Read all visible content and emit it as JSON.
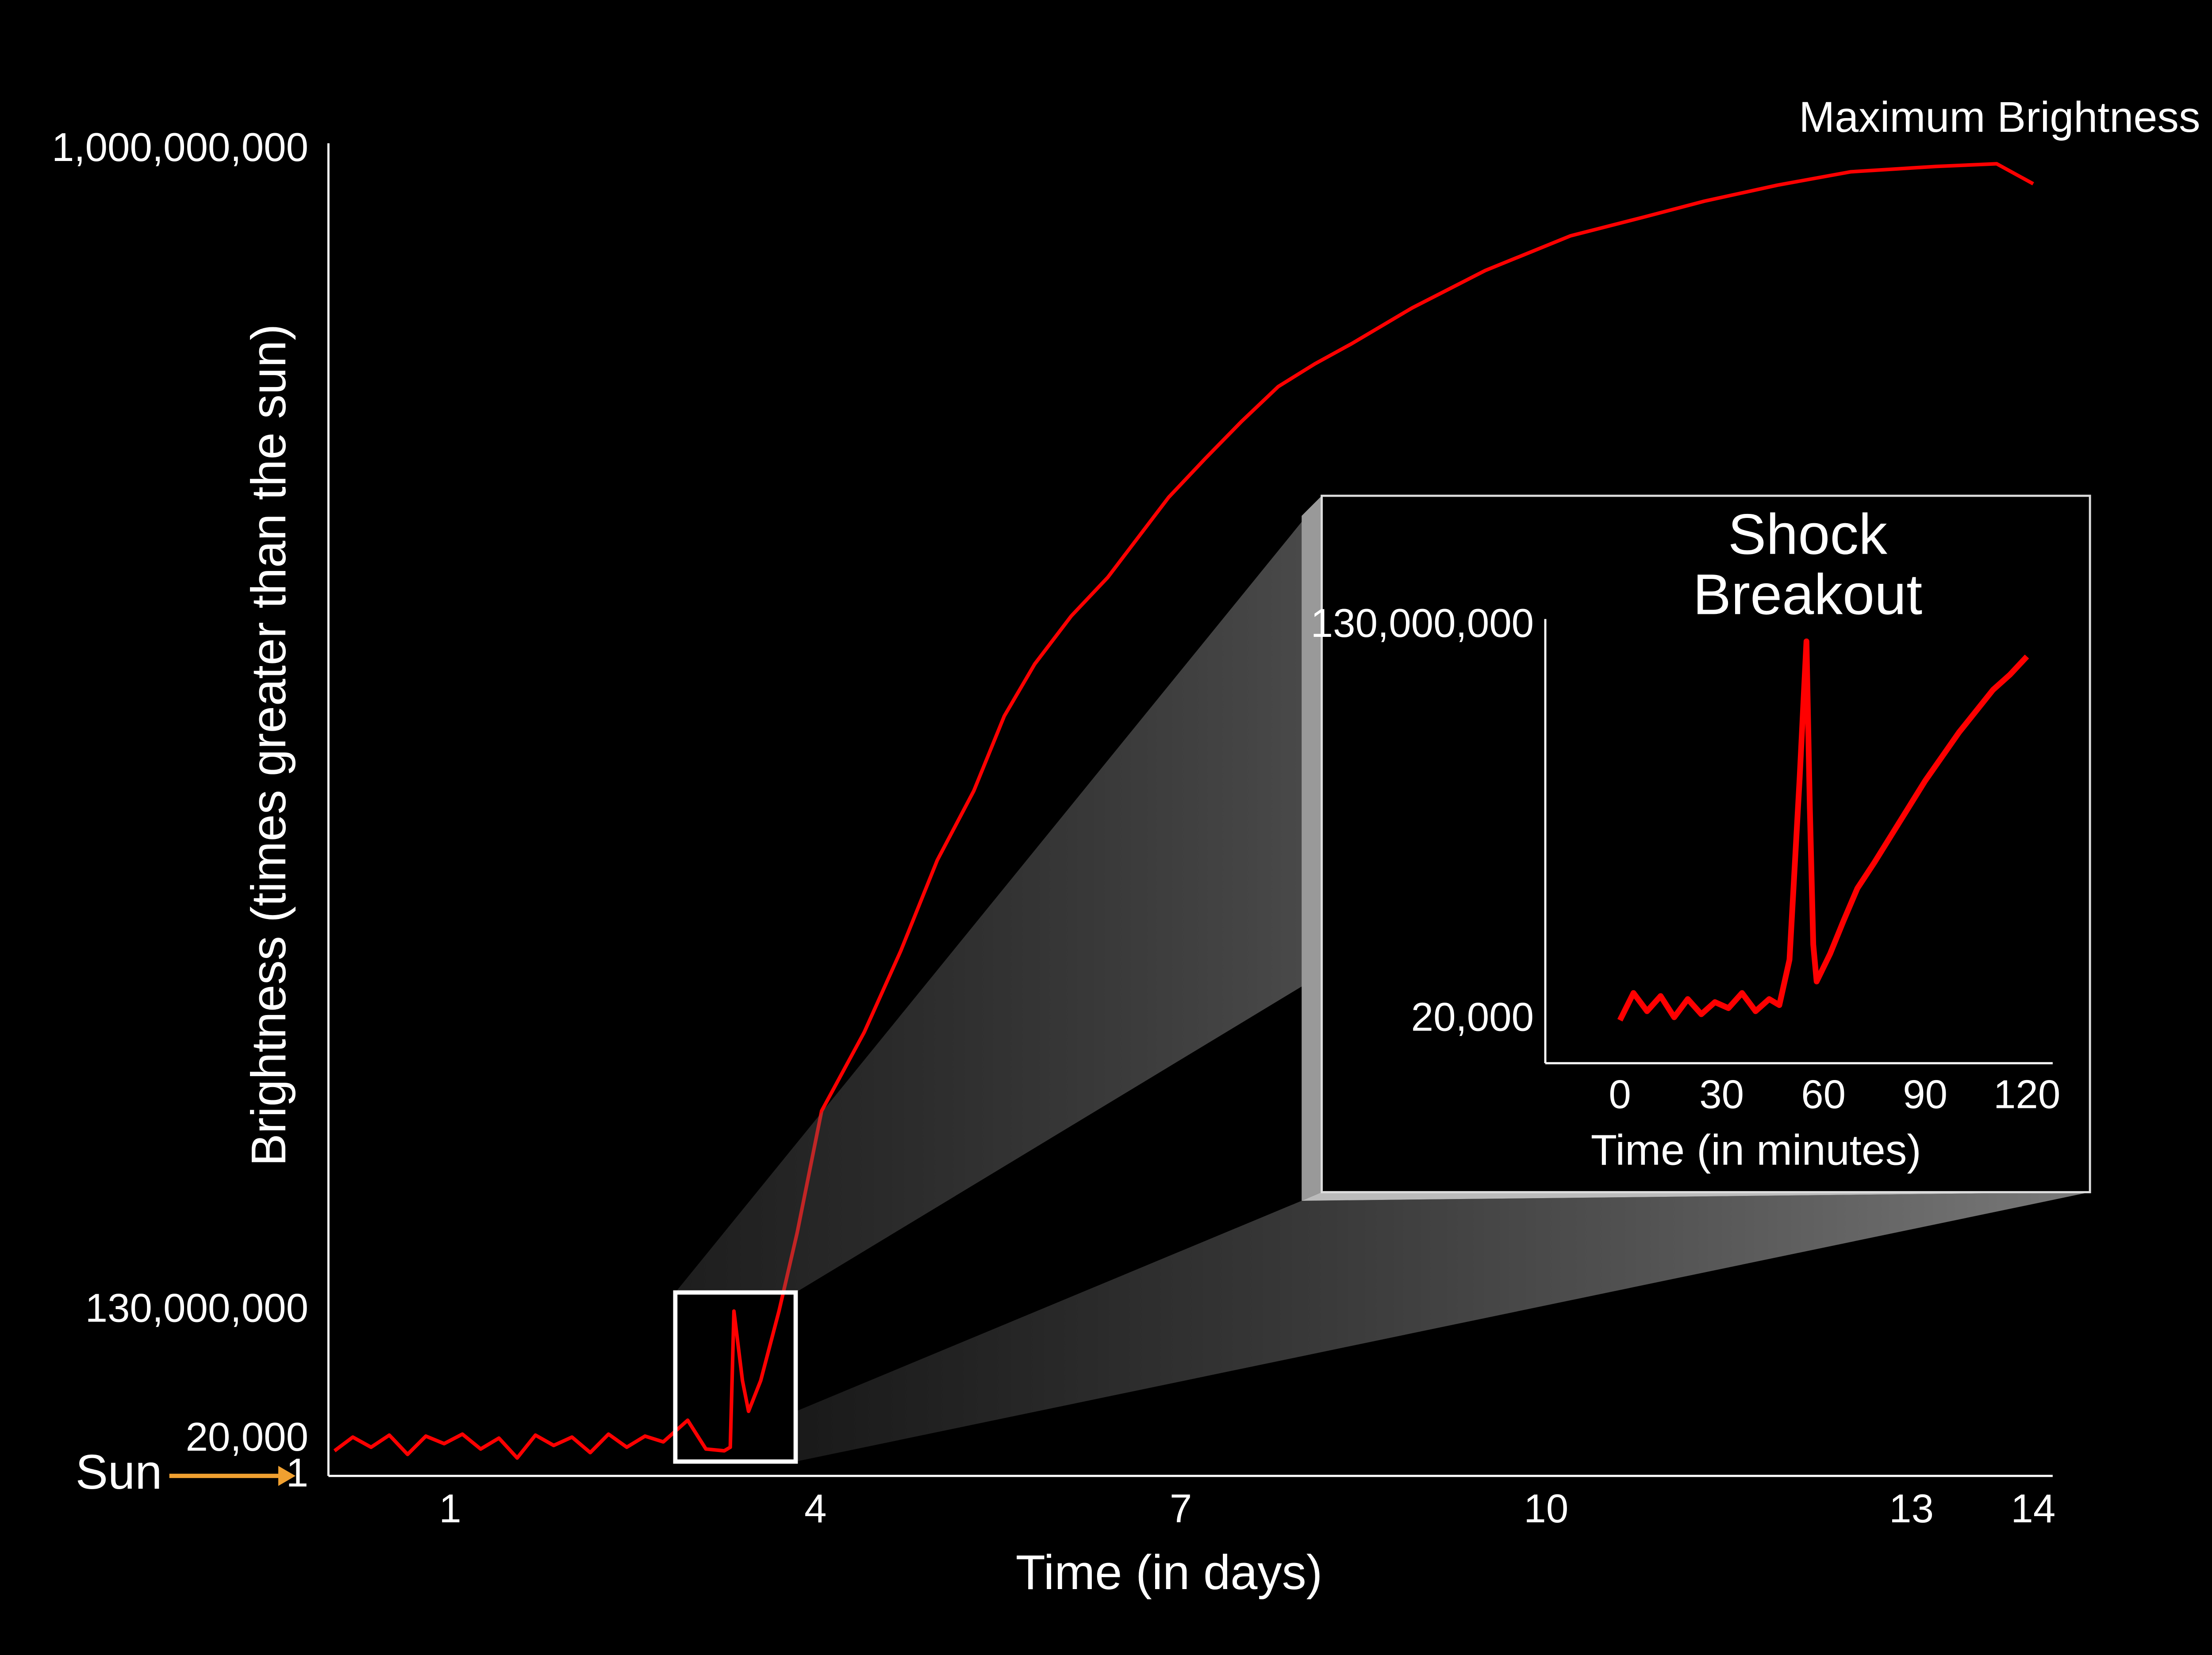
{
  "chart_data": [
    {
      "type": "line",
      "x_label": "Time (in days)",
      "y_label": "Brightness  (times greater than the sun)",
      "annotation": "Maximum Brightness",
      "sun_label": "Sun",
      "x": [
        0.05,
        0.2,
        0.35,
        0.5,
        0.65,
        0.8,
        0.95,
        1.1,
        1.25,
        1.4,
        1.55,
        1.7,
        1.85,
        2.0,
        2.15,
        2.3,
        2.45,
        2.6,
        2.75,
        2.95,
        3.1,
        3.25,
        3.3,
        3.33,
        3.4,
        3.45,
        3.55,
        3.7,
        3.85,
        4.05,
        4.4,
        4.7,
        5.0,
        5.3,
        5.55,
        5.8,
        6.1,
        6.4,
        6.65,
        6.9,
        7.2,
        7.5,
        7.8,
        8.1,
        8.4,
        8.9,
        9.5,
        10.2,
        10.8,
        11.3,
        11.9,
        12.5,
        13.2,
        13.7,
        14.0
      ],
      "series": [
        {
          "color": "#ff0000",
          "values": [
            14000,
            3000000,
            16000,
            5000000,
            12000,
            4000000,
            18000,
            6000000,
            15000,
            2000000,
            10000,
            5000000,
            17000,
            3000000,
            13000,
            6000000,
            16000,
            4000000,
            19000,
            20000000,
            15000,
            14000,
            16000,
            130000000,
            60000000,
            29000000,
            60000000,
            130000000,
            189000000,
            280000000,
            339000000,
            400000000,
            468000000,
            520000000,
            576000000,
            615000000,
            651000000,
            680000000,
            710000000,
            740000000,
            769000000,
            797000000,
            823000000,
            840000000,
            855000000,
            882000000,
            910000000,
            936000000,
            950000000,
            962000000,
            974000000,
            984000000,
            988000000,
            990000000,
            975000000
          ]
        }
      ],
      "xlim": [
        0,
        14.16
      ],
      "xticks": [
        1,
        4,
        7,
        10,
        13,
        14
      ],
      "ylim": [
        1,
        1000000000
      ],
      "yticks": [
        1,
        {
          "value": 20000,
          "label": "20,000"
        },
        {
          "value": 130000000,
          "label": "130,000,000"
        },
        {
          "value": 1000000000,
          "label": "1,000,000,000"
        }
      ]
    },
    {
      "type": "line",
      "x_label": "Time (in minutes)",
      "annotation": [
        "Shock",
        "Breakout"
      ],
      "x": [
        0,
        4,
        8,
        12,
        16,
        20,
        24,
        28,
        32,
        36,
        40,
        44,
        47,
        50,
        53,
        55,
        56,
        57,
        58,
        62,
        66,
        70,
        75,
        80,
        85,
        90,
        95,
        100,
        105,
        110,
        115,
        120
      ],
      "series": [
        {
          "color": "#ff0000",
          "values": [
            20000,
            9000000,
            3000000,
            8000000,
            1000000,
            7000000,
            2000000,
            6000000,
            4000000,
            9000000,
            3000000,
            7000000,
            5000000,
            20000000,
            80000000,
            125000000,
            70000000,
            25000000,
            12800000,
            22000000,
            33000000,
            43500000,
            52000000,
            61000000,
            70000000,
            79000000,
            87000000,
            95000000,
            102000000,
            109000000,
            114000000,
            120000000
          ]
        }
      ],
      "xlim": [
        -22,
        127.6
      ],
      "xticks": [
        0,
        30,
        60,
        90,
        120
      ],
      "ylim": [
        -14160000,
        130000000
      ],
      "yticks": [
        {
          "value": 20000,
          "label": "20,000"
        },
        {
          "value": 130000000,
          "label": "130,000,000"
        }
      ]
    }
  ]
}
